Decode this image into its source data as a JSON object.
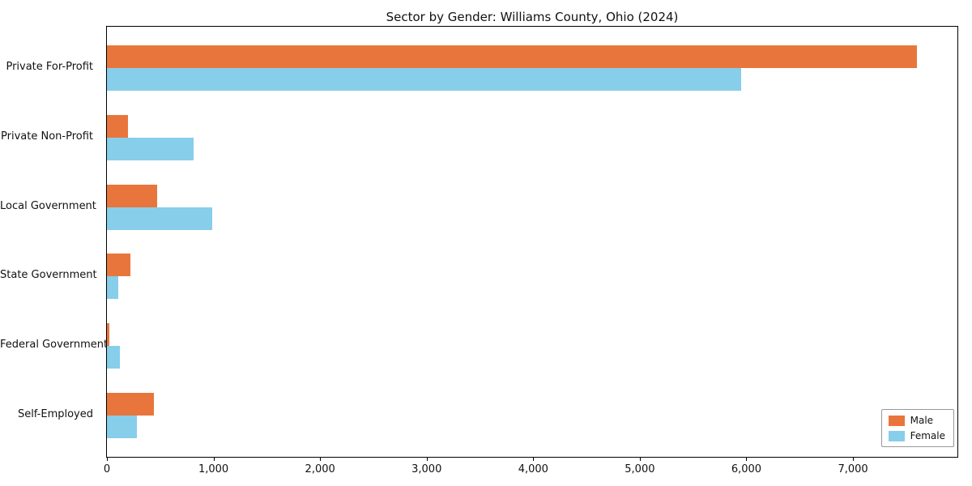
{
  "chart_data": {
    "type": "bar",
    "orientation": "horizontal",
    "title": "Sector by Gender: Williams County, Ohio (2024)",
    "categories": [
      "Private For-Profit",
      "Private Non-Profit",
      "Local Government",
      "State Government",
      "Federal Government",
      "Self-Employed"
    ],
    "series": [
      {
        "name": "Male",
        "color": "#e8763c",
        "values": [
          7600,
          200,
          470,
          220,
          25,
          440
        ]
      },
      {
        "name": "Female",
        "color": "#87ceeb",
        "values": [
          5950,
          810,
          990,
          110,
          120,
          280
        ]
      }
    ],
    "xlabel": "",
    "ylabel": "",
    "xlim": [
      0,
      7980
    ],
    "xticks": [
      0,
      1000,
      2000,
      3000,
      4000,
      5000,
      6000,
      7000
    ],
    "xtick_format": "comma",
    "grid": false,
    "legend_position": "lower right"
  }
}
